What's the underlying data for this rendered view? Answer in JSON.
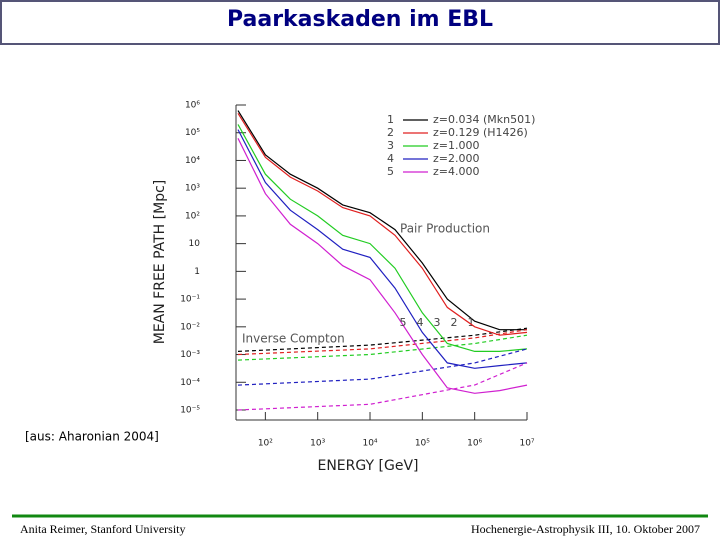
{
  "slide": {
    "title": "Paarkaskaden im EBL",
    "citation": "[aus: Aharonian 2004]",
    "footer_left": "Anita Reimer, Stanford University",
    "footer_right": "Hochenergie-Astrophysik III, 10. Oktober 2007"
  },
  "chart_data": {
    "type": "line",
    "x_label": "ENERGY [GeV]",
    "y_label": "MEAN FREE PATH [Mpc]",
    "log_x": true,
    "log_y": true,
    "annotations": [
      "Pair Production",
      "Inverse Compton"
    ],
    "x": [
      30,
      100,
      300,
      1000,
      3000,
      10000,
      30000,
      100000,
      300000,
      1000000,
      3000000,
      10000000
    ],
    "ic_x": [
      30,
      10000,
      1000000,
      10000000
    ],
    "series": [
      {
        "label": "1",
        "name": "z=0.034 (Mkn501)",
        "color": "#000000",
        "values": [
          630000,
          16000,
          3200,
          1000,
          250,
          130,
          32,
          2,
          0.1,
          0.016,
          0.0079,
          0.0079
        ],
        "ic_values": [
          0.0013,
          0.0022,
          0.005,
          0.0089
        ]
      },
      {
        "label": "2",
        "name": "z=0.129 (H1426)",
        "color": "#e02020",
        "values": [
          500000,
          13000,
          2500,
          790,
          200,
          100,
          20,
          1.3,
          0.05,
          0.01,
          0.005,
          0.0063
        ],
        "ic_values": [
          0.001,
          0.0016,
          0.004,
          0.0079
        ]
      },
      {
        "label": "3",
        "name": "z=1.000",
        "color": "#22cc22",
        "values": [
          200000,
          3200,
          400,
          100,
          20,
          10,
          1.3,
          0.032,
          0.0025,
          0.0013,
          0.0013,
          0.0016
        ],
        "ic_values": [
          0.00063,
          0.001,
          0.0025,
          0.005
        ]
      },
      {
        "label": "4",
        "name": "z=2.000",
        "color": "#2020c0",
        "values": [
          130000,
          1600,
          160,
          32,
          6.3,
          3.2,
          0.25,
          0.0063,
          0.0005,
          0.00032,
          0.0004,
          0.0005
        ],
        "ic_values": [
          7.9e-05,
          0.00013,
          0.0005,
          0.0016
        ]
      },
      {
        "label": "5",
        "name": "z=4.000",
        "color": "#d020d0",
        "values": [
          63000,
          630,
          50,
          10,
          1.6,
          0.5,
          0.032,
          0.001,
          6.3e-05,
          4e-05,
          5e-05,
          7.9e-05
        ],
        "ic_values": [
          1e-05,
          1.6e-05,
          8e-05,
          0.0005
        ]
      }
    ],
    "xlim": [
      30,
      10000000
    ],
    "ylim": [
      1e-05,
      1000000
    ],
    "xticks": [
      {
        "value": 100,
        "label": "10²"
      },
      {
        "value": 1000,
        "label": "10³"
      },
      {
        "value": 10000,
        "label": "10⁴"
      },
      {
        "value": 100000,
        "label": "10⁵"
      },
      {
        "value": 1000000,
        "label": "10⁶"
      },
      {
        "value": 10000000,
        "label": "10⁷"
      }
    ],
    "yticks": [
      {
        "value": 1000000,
        "label": "10⁶"
      },
      {
        "value": 100000,
        "label": "10⁵"
      },
      {
        "value": 10000,
        "label": "10⁴"
      },
      {
        "value": 1000,
        "label": "10³"
      },
      {
        "value": 100,
        "label": "10²"
      },
      10,
      1,
      {
        "value": 0.1,
        "label": "10⁻¹"
      },
      {
        "value": 0.01,
        "label": "10⁻²"
      },
      {
        "value": 0.001,
        "label": "10⁻³"
      },
      {
        "value": 0.0001,
        "label": "10⁻⁴"
      },
      {
        "value": 1e-05,
        "label": "10⁻⁵"
      }
    ]
  }
}
